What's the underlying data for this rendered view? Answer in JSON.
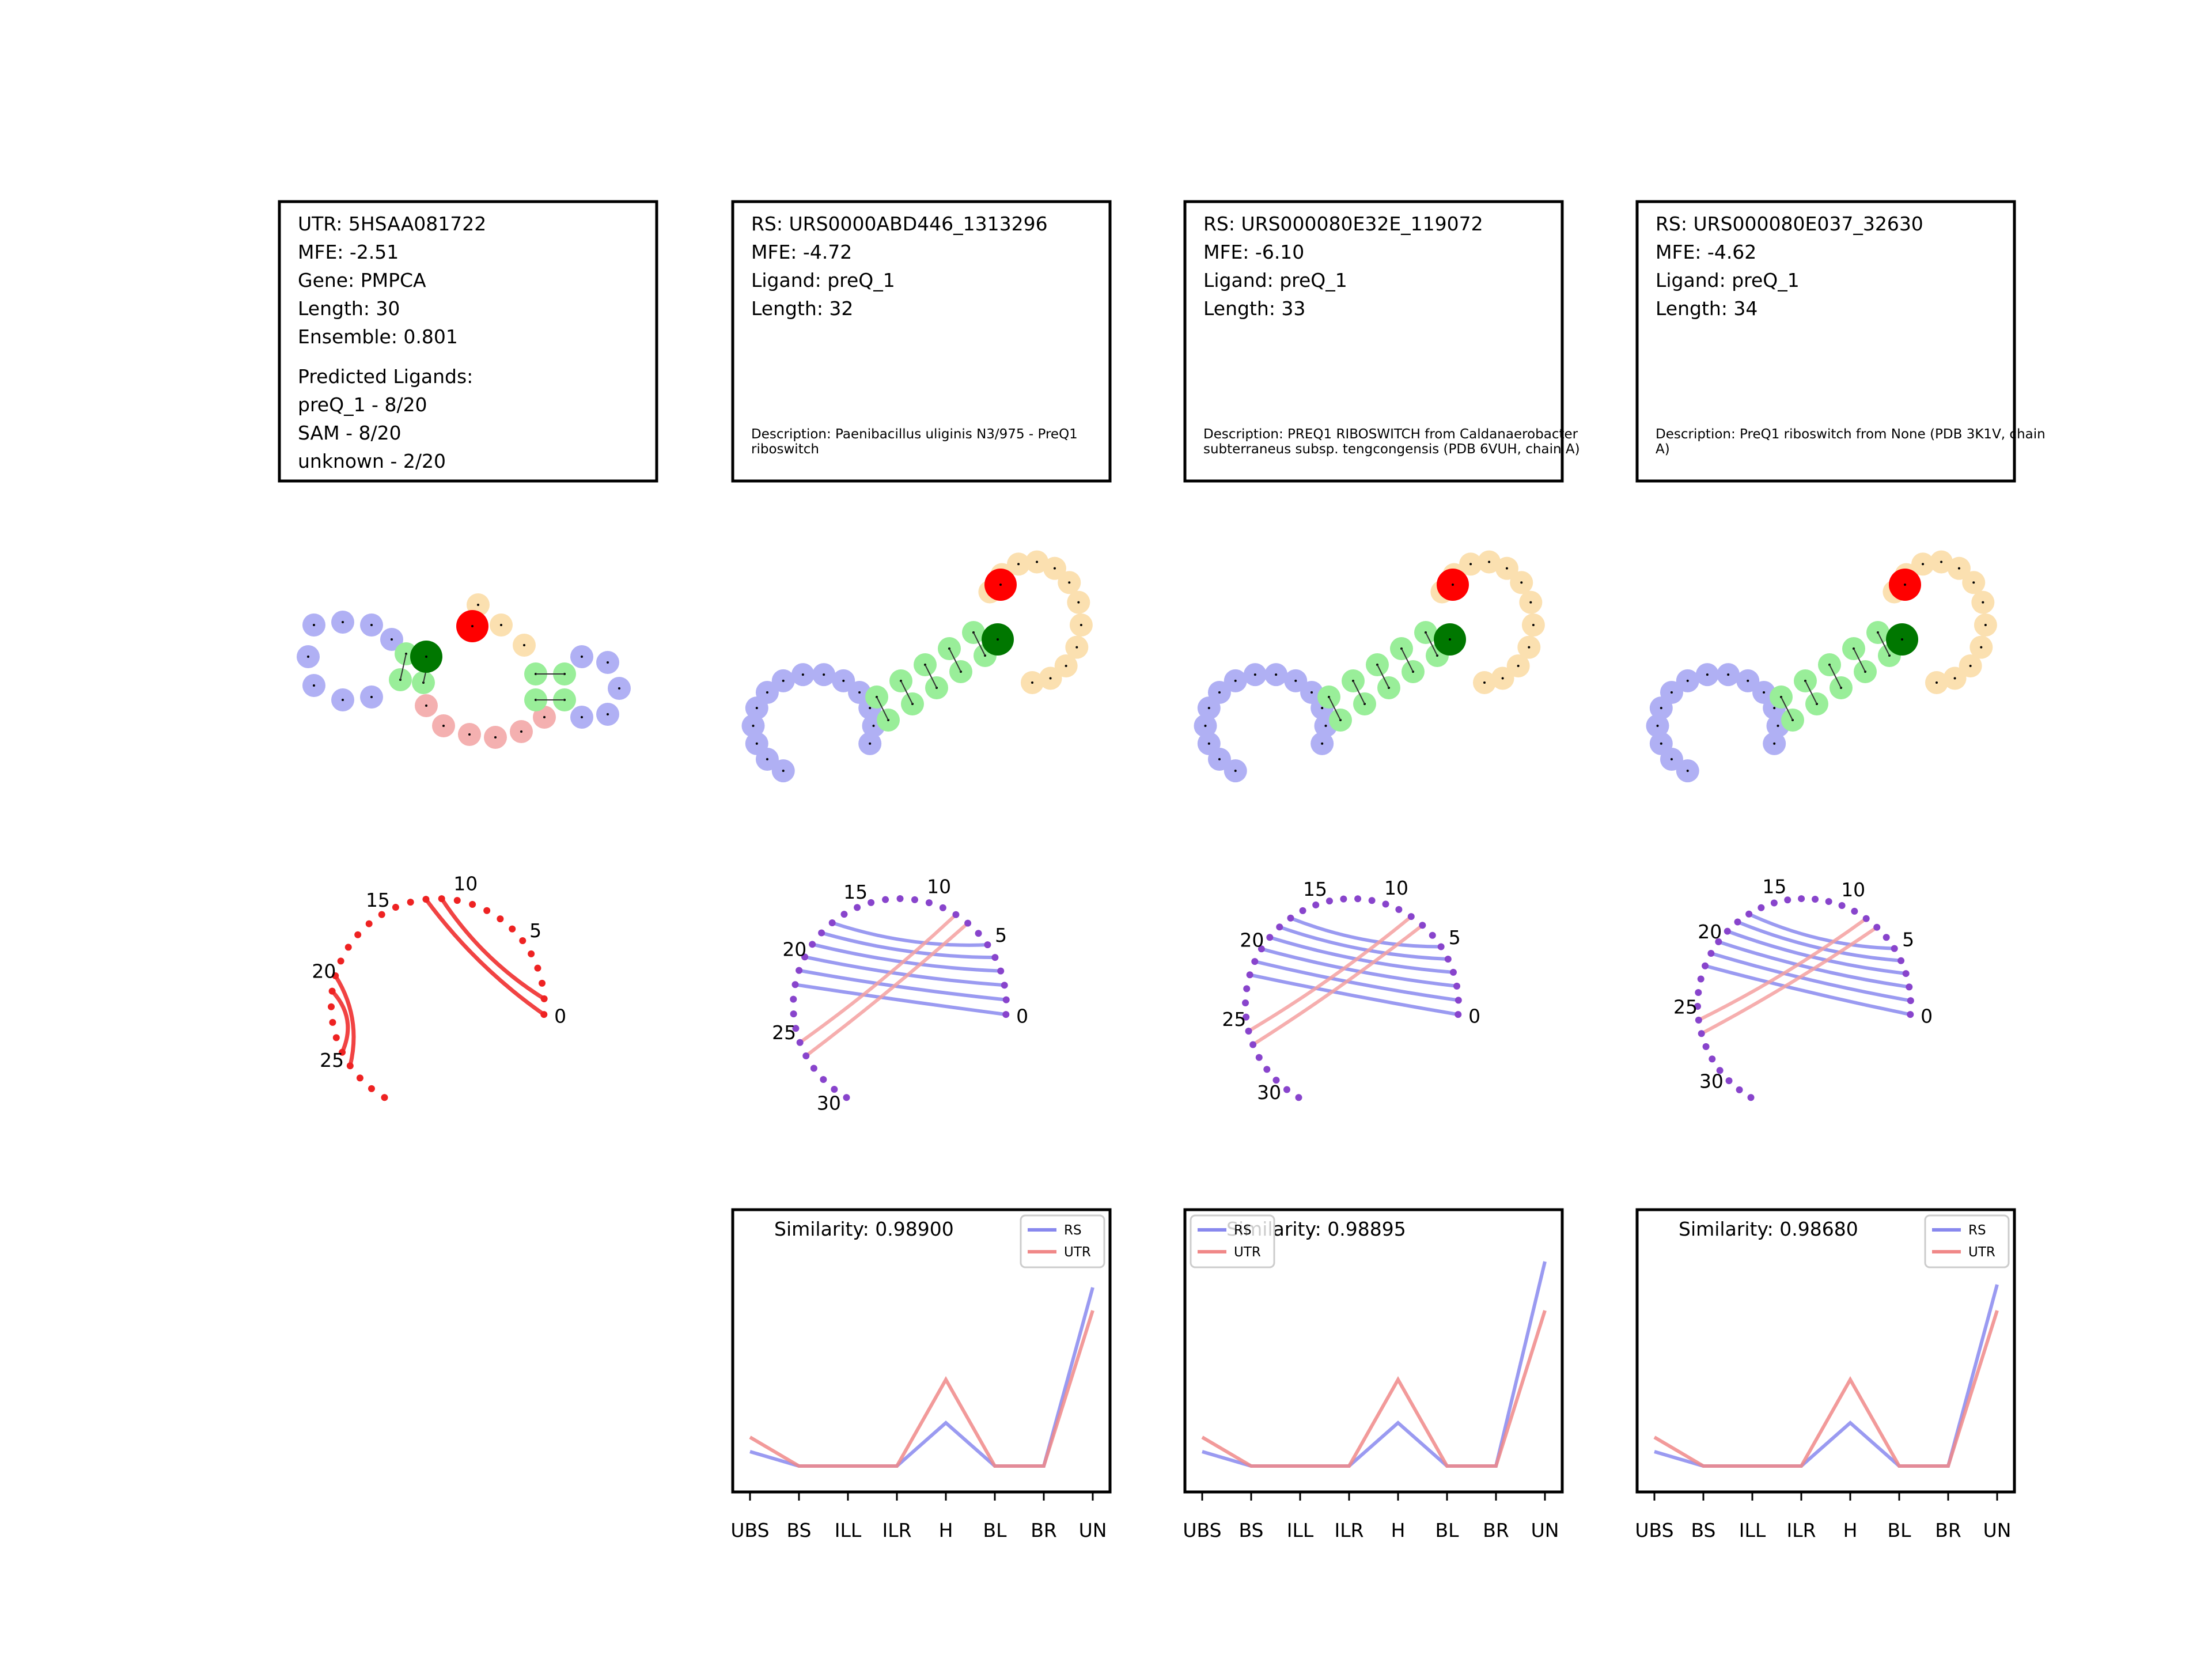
{
  "panels": [
    {
      "kind": "UTR",
      "info": [
        "UTR: 5HSAA081722",
        "MFE: -2.51",
        "Gene: PMPCA",
        "Length: 30",
        "Ensemble: 0.801"
      ],
      "predicted": [
        "Predicted Ligands:",
        "preQ_1 - 8/20",
        "SAM - 8/20",
        "unknown - 2/20"
      ],
      "description": "",
      "arc_labels": [
        "0",
        "5",
        "10",
        "15",
        "20",
        "25"
      ],
      "similarity": ""
    },
    {
      "kind": "RS",
      "info": [
        "RS: URS0000ABD446_1313296",
        "MFE: -4.72",
        "Ligand: preQ_1",
        "Length: 32"
      ],
      "predicted": [],
      "description": "Description: Paenibacillus uliginis N3/975 - PreQ1 riboswitch",
      "arc_labels": [
        "0",
        "5",
        "10",
        "15",
        "20",
        "25",
        "30"
      ],
      "similarity": "Similarity: 0.98900"
    },
    {
      "kind": "RS",
      "info": [
        "RS: URS000080E32E_119072",
        "MFE: -6.10",
        "Ligand: preQ_1",
        "Length: 33"
      ],
      "predicted": [],
      "description": "Description: PREQ1 RIBOSWITCH from Caldanaerobacter subterraneus subsp. tengcongensis (PDB 6VUH, chain A)",
      "arc_labels": [
        "0",
        "5",
        "10",
        "15",
        "20",
        "25",
        "30"
      ],
      "similarity": "Similarity: 0.98895"
    },
    {
      "kind": "RS",
      "info": [
        "RS: URS000080E037_32630",
        "MFE: -4.62",
        "Ligand: preQ_1",
        "Length: 34"
      ],
      "predicted": [],
      "description": "Description: PreQ1 riboswitch from None (PDB 3K1V, chain A)",
      "arc_labels": [
        "0",
        "5",
        "10",
        "15",
        "20",
        "25",
        "30"
      ],
      "similarity": "Similarity: 0.98680"
    }
  ],
  "chart_data": [
    {
      "type": "line",
      "categories": [
        "UBS",
        "BS",
        "ILL",
        "ILR",
        "H",
        "BL",
        "BR",
        "UN"
      ],
      "series": [
        {
          "name": "RS",
          "color": "#8888ee",
          "values": [
            0.05,
            0.0,
            0.0,
            0.0,
            0.15,
            0.0,
            0.0,
            0.62
          ]
        },
        {
          "name": "UTR",
          "color": "#f08888",
          "values": [
            0.1,
            0.0,
            0.0,
            0.0,
            0.3,
            0.0,
            0.0,
            0.54
          ]
        }
      ],
      "title": "Similarity: 0.98900",
      "legend": "top-right"
    },
    {
      "type": "line",
      "categories": [
        "UBS",
        "BS",
        "ILL",
        "ILR",
        "H",
        "BL",
        "BR",
        "UN"
      ],
      "series": [
        {
          "name": "RS",
          "color": "#8888ee",
          "values": [
            0.05,
            0.0,
            0.0,
            0.0,
            0.15,
            0.0,
            0.0,
            0.71
          ]
        },
        {
          "name": "UTR",
          "color": "#f08888",
          "values": [
            0.1,
            0.0,
            0.0,
            0.0,
            0.3,
            0.0,
            0.0,
            0.54
          ]
        }
      ],
      "title": "Similarity: 0.98895",
      "legend": "top-left"
    },
    {
      "type": "line",
      "categories": [
        "UBS",
        "BS",
        "ILL",
        "ILR",
        "H",
        "BL",
        "BR",
        "UN"
      ],
      "series": [
        {
          "name": "RS",
          "color": "#8888ee",
          "values": [
            0.05,
            0.0,
            0.0,
            0.0,
            0.15,
            0.0,
            0.0,
            0.63
          ]
        },
        {
          "name": "UTR",
          "color": "#f08888",
          "values": [
            0.1,
            0.0,
            0.0,
            0.0,
            0.3,
            0.0,
            0.0,
            0.54
          ]
        }
      ],
      "title": "Similarity: 0.98680",
      "legend": "top-right"
    }
  ],
  "colors": {
    "stem": "#99ee99",
    "loop_left": "#b0b0f4",
    "loop_right": "#fbe0b0",
    "loop_bottom": "#f4b0b0",
    "start_node": "#ff0000",
    "ligand_node": "#007700",
    "arc_red": "#ee2222",
    "arc_blue": "#8888ee",
    "arc_pink": "#f4a0a0",
    "arc_purple": "#8844cc"
  }
}
